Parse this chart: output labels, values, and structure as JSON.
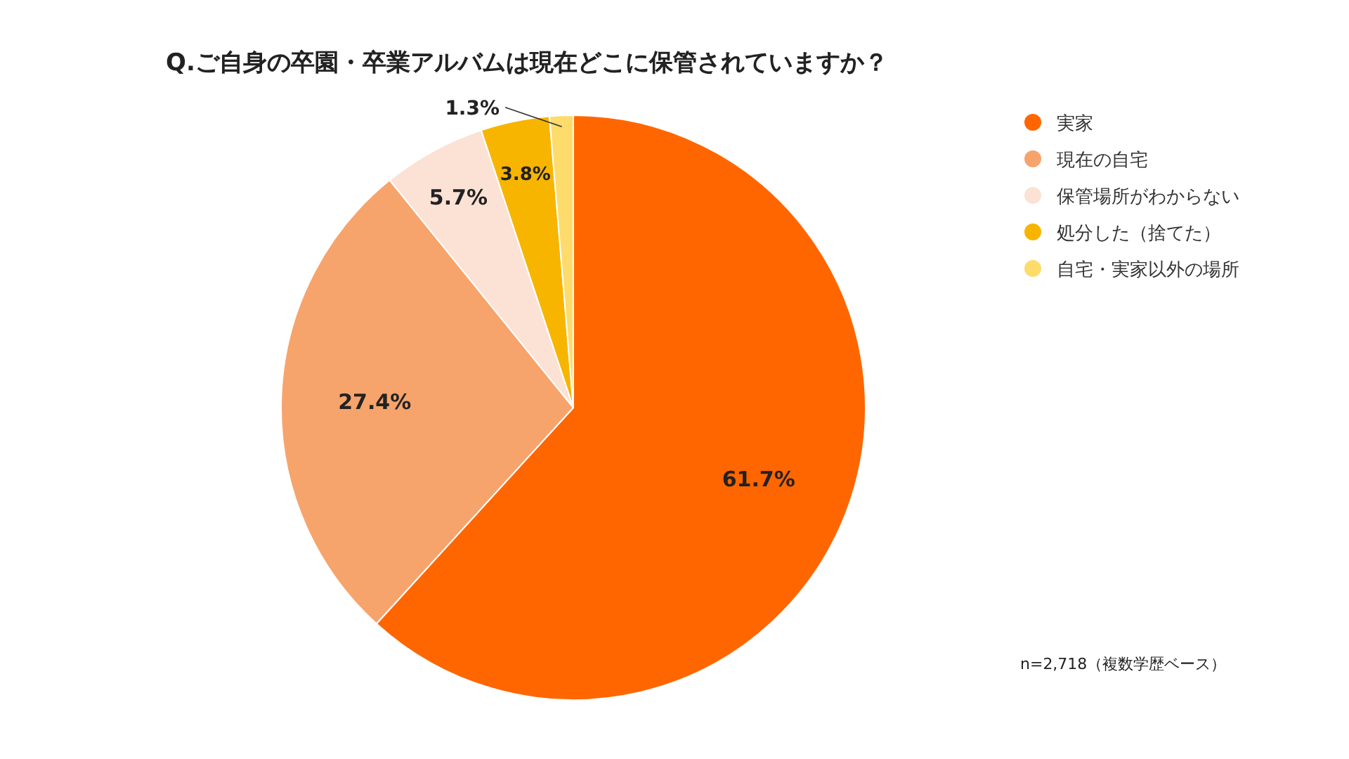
{
  "chart_data": {
    "type": "pie",
    "title": "Q.ご自身の卒園・卒業アルバムは現在どこに保管されていますか？",
    "categories": [
      "実家",
      "現在の自宅",
      "保管場所がわからない",
      "処分した（捨てた）",
      "自宅・実家以外の場所"
    ],
    "values": [
      61.7,
      27.4,
      5.7,
      3.8,
      1.3
    ],
    "colors": [
      "#ff6600",
      "#f6a46c",
      "#fbe2d5",
      "#f7b500",
      "#fddc6c"
    ],
    "value_labels": [
      "61.7%",
      "27.4%",
      "5.7%",
      "3.8%",
      "1.3%"
    ],
    "legend": "right",
    "annotations": [
      "n=2,718（複数学歴ベース）"
    ]
  }
}
